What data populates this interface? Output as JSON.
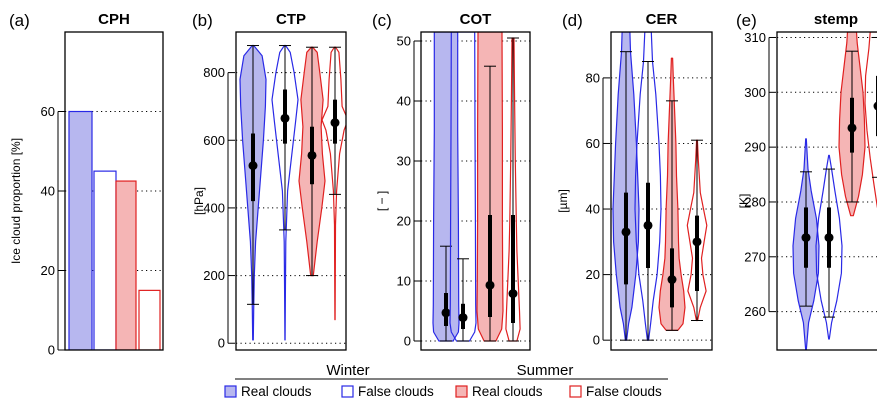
{
  "colors": {
    "blue": "#2929e6",
    "blue_fill": "#b7b7ef",
    "red": "#e02020",
    "red_fill": "#f5b5b5",
    "grid": "#000000"
  },
  "legend": {
    "group_labels": [
      "Winter",
      "Summer"
    ],
    "items": [
      "Real clouds",
      "False clouds",
      "Real clouds",
      "False clouds"
    ]
  },
  "chart_data": [
    {
      "type": "bar",
      "panel": "(a)",
      "title": "CPH",
      "ylabel": "Ice cloud proportion [%]",
      "ylim": [
        0,
        80
      ],
      "yticks": [
        0,
        20,
        40,
        60
      ],
      "gridlines": [
        20,
        40,
        60
      ],
      "categories": [
        "Winter real clouds",
        "Winter false clouds",
        "Summer real clouds",
        "Summer false clouds"
      ],
      "values": [
        60,
        45,
        42.5,
        15
      ]
    },
    {
      "type": "violin",
      "panel": "(b)",
      "title": "CTP",
      "ylabel": "[hPa]",
      "ylim": [
        -20,
        920
      ],
      "yticks": [
        0,
        200,
        400,
        600,
        800
      ],
      "gridlines": [
        0,
        200,
        400,
        600,
        800
      ],
      "series": [
        {
          "group": "Winter",
          "kind": "real",
          "min": 10,
          "max": 880,
          "whisker_low": 115,
          "whisker_high": 880,
          "q1": 420,
          "q3": 620,
          "median": 525,
          "density": [
            [
              10,
              0.02
            ],
            [
              100,
              0.05
            ],
            [
              200,
              0.1
            ],
            [
              300,
              0.2
            ],
            [
              400,
              0.4
            ],
            [
              500,
              0.6
            ],
            [
              600,
              0.8
            ],
            [
              700,
              0.95
            ],
            [
              780,
              1.0
            ],
            [
              850,
              0.7
            ],
            [
              880,
              0.05
            ]
          ]
        },
        {
          "group": "Winter",
          "kind": "false",
          "min": 10,
          "max": 880,
          "whisker_low": 335,
          "whisker_high": 880,
          "q1": 590,
          "q3": 750,
          "median": 665,
          "density": [
            [
              10,
              0.01
            ],
            [
              150,
              0.03
            ],
            [
              300,
              0.06
            ],
            [
              450,
              0.2
            ],
            [
              550,
              0.5
            ],
            [
              650,
              0.8
            ],
            [
              720,
              1.0
            ],
            [
              800,
              0.7
            ],
            [
              860,
              0.4
            ],
            [
              880,
              0.05
            ]
          ]
        },
        {
          "group": "Summer",
          "kind": "real",
          "min": 200,
          "max": 875,
          "whisker_low": 200,
          "whisker_high": 875,
          "q1": 470,
          "q3": 640,
          "median": 555,
          "density": [
            [
              200,
              0.1
            ],
            [
              300,
              0.4
            ],
            [
              400,
              0.75
            ],
            [
              480,
              1.0
            ],
            [
              560,
              0.8
            ],
            [
              640,
              0.7
            ],
            [
              720,
              0.85
            ],
            [
              800,
              0.6
            ],
            [
              860,
              0.4
            ],
            [
              875,
              0.05
            ]
          ]
        },
        {
          "group": "Summer",
          "kind": "false",
          "min": 70,
          "max": 875,
          "whisker_low": 440,
          "whisker_high": 875,
          "q1": 590,
          "q3": 720,
          "median": 652,
          "density": [
            [
              70,
              0.01
            ],
            [
              200,
              0.02
            ],
            [
              350,
              0.04
            ],
            [
              450,
              0.12
            ],
            [
              560,
              0.35
            ],
            [
              630,
              0.7
            ],
            [
              660,
              1.0
            ],
            [
              700,
              0.55
            ],
            [
              780,
              0.45
            ],
            [
              860,
              0.3
            ],
            [
              875,
              0.05
            ]
          ]
        }
      ]
    },
    {
      "type": "violin",
      "panel": "(c)",
      "title": "COT",
      "ylabel": "[ − ]",
      "ylim": [
        -1.5,
        51.5
      ],
      "yticks": [
        0,
        10,
        20,
        30,
        40,
        50
      ],
      "gridlines": [
        0,
        10,
        20,
        30,
        40,
        50
      ],
      "series": [
        {
          "group": "Winter",
          "kind": "real",
          "min": 0,
          "max": 51.5,
          "whisker_low": 0,
          "whisker_high": 15.8,
          "q1": 2.5,
          "q3": 8,
          "median": 4.7,
          "density": [
            [
              0,
              0.55
            ],
            [
              1.5,
              0.95
            ],
            [
              3,
              1.0
            ],
            [
              6,
              0.98
            ],
            [
              10,
              0.97
            ],
            [
              20,
              0.95
            ],
            [
              35,
              0.9
            ],
            [
              51.5,
              0.9
            ]
          ]
        },
        {
          "group": "Winter",
          "kind": "false",
          "min": 0,
          "max": 51.5,
          "whisker_low": 0,
          "whisker_high": 13.7,
          "q1": 2,
          "q3": 6.2,
          "median": 3.9,
          "density": [
            [
              0,
              0.5
            ],
            [
              1.5,
              0.9
            ],
            [
              3,
              1.0
            ],
            [
              6,
              0.98
            ],
            [
              10,
              0.97
            ],
            [
              20,
              0.95
            ],
            [
              35,
              0.92
            ],
            [
              51.5,
              0.9
            ]
          ]
        },
        {
          "group": "Summer",
          "kind": "real",
          "min": 0,
          "max": 51.5,
          "whisker_low": 0,
          "whisker_high": 45.8,
          "q1": 4,
          "q3": 21,
          "median": 9.3,
          "density": [
            [
              0,
              0.45
            ],
            [
              2,
              0.9
            ],
            [
              5,
              1.0
            ],
            [
              10,
              0.98
            ],
            [
              20,
              0.95
            ],
            [
              35,
              0.95
            ],
            [
              51.5,
              0.92
            ]
          ]
        },
        {
          "group": "Summer",
          "kind": "false",
          "min": 0,
          "max": 50.5,
          "whisker_low": 0,
          "whisker_high": 50.5,
          "q1": 3,
          "q3": 21,
          "median": 7.9,
          "density": [
            [
              0,
              0.3
            ],
            [
              2,
              0.55
            ],
            [
              5,
              0.5
            ],
            [
              10,
              0.4
            ],
            [
              15,
              0.3
            ],
            [
              20,
              0.25
            ],
            [
              30,
              0.18
            ],
            [
              40,
              0.12
            ],
            [
              50.5,
              0.08
            ]
          ]
        }
      ]
    },
    {
      "type": "violin",
      "panel": "(d)",
      "title": "CER",
      "ylabel": "[µm]",
      "ylim": [
        -3,
        94
      ],
      "yticks": [
        0,
        20,
        40,
        60,
        80
      ],
      "gridlines": [
        0,
        20,
        40,
        60,
        80
      ],
      "series": [
        {
          "group": "Winter",
          "kind": "real",
          "min": 0,
          "max": 94,
          "whisker_low": 0,
          "whisker_high": 88,
          "q1": 17,
          "q3": 45,
          "median": 33,
          "density": [
            [
              0,
              0.05
            ],
            [
              5,
              0.2
            ],
            [
              10,
              0.45
            ],
            [
              20,
              0.75
            ],
            [
              30,
              0.95
            ],
            [
              40,
              1.0
            ],
            [
              50,
              0.9
            ],
            [
              60,
              0.8
            ],
            [
              75,
              0.6
            ],
            [
              88,
              0.35
            ],
            [
              94,
              0.3
            ]
          ]
        },
        {
          "group": "Winter",
          "kind": "false",
          "min": 0,
          "max": 94,
          "whisker_low": 0,
          "whisker_high": 85,
          "q1": 22,
          "q3": 48,
          "median": 35,
          "density": [
            [
              0,
              0.05
            ],
            [
              5,
              0.2
            ],
            [
              12,
              0.4
            ],
            [
              20,
              0.7
            ],
            [
              30,
              0.9
            ],
            [
              40,
              1.0
            ],
            [
              50,
              0.95
            ],
            [
              60,
              0.85
            ],
            [
              75,
              0.6
            ],
            [
              85,
              0.35
            ],
            [
              94,
              0.25
            ]
          ]
        },
        {
          "group": "Summer",
          "kind": "real",
          "min": 3,
          "max": 86,
          "whisker_low": 3,
          "whisker_high": 73,
          "q1": 10,
          "q3": 28,
          "median": 18.5,
          "density": [
            [
              3,
              0.45
            ],
            [
              5,
              0.85
            ],
            [
              10,
              1.0
            ],
            [
              15,
              0.9
            ],
            [
              20,
              0.7
            ],
            [
              25,
              0.55
            ],
            [
              30,
              0.5
            ],
            [
              40,
              0.45
            ],
            [
              50,
              0.35
            ],
            [
              60,
              0.3
            ],
            [
              70,
              0.2
            ],
            [
              80,
              0.1
            ],
            [
              86,
              0.05
            ]
          ]
        },
        {
          "group": "Summer",
          "kind": "false",
          "min": 6,
          "max": 61,
          "whisker_low": 6,
          "whisker_high": 61,
          "q1": 15,
          "q3": 38,
          "median": 30,
          "density": [
            [
              6,
              0.05
            ],
            [
              10,
              0.25
            ],
            [
              15,
              0.7
            ],
            [
              20,
              0.45
            ],
            [
              25,
              0.35
            ],
            [
              30,
              0.55
            ],
            [
              35,
              0.75
            ],
            [
              40,
              0.5
            ],
            [
              45,
              0.25
            ],
            [
              55,
              0.1
            ],
            [
              61,
              0.03
            ]
          ]
        }
      ]
    },
    {
      "type": "violin",
      "panel": "(e)",
      "title": "stemp",
      "ylabel": "[K]",
      "ylim": [
        253,
        311
      ],
      "yticks": [
        260,
        270,
        280,
        290,
        300,
        310
      ],
      "gridlines": [
        260,
        270,
        280,
        290,
        300,
        310
      ],
      "series": [
        {
          "group": "Winter",
          "kind": "real",
          "min": 253,
          "max": 291.5,
          "whisker_low": 261,
          "whisker_high": 285.5,
          "q1": 268,
          "q3": 279,
          "median": 273.5,
          "density": [
            [
              253,
              0.02
            ],
            [
              258,
              0.2
            ],
            [
              262,
              0.6
            ],
            [
              267,
              0.95
            ],
            [
              272,
              1.0
            ],
            [
              277,
              0.8
            ],
            [
              282,
              0.4
            ],
            [
              286,
              0.15
            ],
            [
              291.5,
              0.02
            ]
          ]
        },
        {
          "group": "Winter",
          "kind": "false",
          "min": 255,
          "max": 288.5,
          "whisker_low": 259,
          "whisker_high": 286,
          "q1": 268,
          "q3": 279,
          "median": 273.5,
          "density": [
            [
              255,
              0.02
            ],
            [
              258,
              0.2
            ],
            [
              262,
              0.6
            ],
            [
              267,
              0.95
            ],
            [
              272,
              1.0
            ],
            [
              277,
              0.8
            ],
            [
              282,
              0.45
            ],
            [
              286,
              0.2
            ],
            [
              288.5,
              0.02
            ]
          ]
        },
        {
          "group": "Summer",
          "kind": "real",
          "min": 277.5,
          "max": 311,
          "whisker_low": 280,
          "whisker_high": 307.5,
          "q1": 289,
          "q3": 299,
          "median": 293.5,
          "density": [
            [
              277.5,
              0.1
            ],
            [
              281,
              0.5
            ],
            [
              285,
              0.8
            ],
            [
              290,
              1.0
            ],
            [
              295,
              0.95
            ],
            [
              300,
              0.85
            ],
            [
              305,
              0.6
            ],
            [
              309,
              0.4
            ],
            [
              311,
              0.35
            ]
          ]
        },
        {
          "group": "Summer",
          "kind": "false",
          "min": 279,
          "max": 311,
          "whisker_low": 284.5,
          "whisker_high": 310,
          "q1": 292,
          "q3": 303,
          "median": 297.5,
          "density": [
            [
              279,
              0.05
            ],
            [
              283,
              0.3
            ],
            [
              288,
              0.6
            ],
            [
              293,
              0.85
            ],
            [
              298,
              1.0
            ],
            [
              303,
              0.95
            ],
            [
              308,
              0.7
            ],
            [
              311,
              0.6
            ]
          ]
        }
      ]
    }
  ]
}
